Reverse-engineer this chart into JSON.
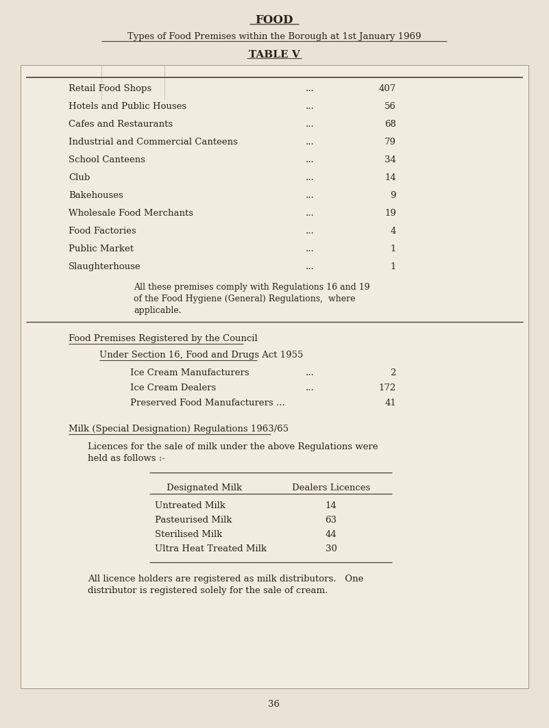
{
  "page_bg": "#e8e3d5",
  "card_bg": "#f0ece0",
  "card_edge": "#a09880",
  "title_main": "FOOD",
  "title_sub": "Types of Food Premises within the Borough at 1st January 1969",
  "table_title": "TABLE V",
  "table1_rows": [
    [
      "Retail Food Shops",
      "...",
      "407"
    ],
    [
      "Hotels and Public Houses",
      "...",
      "56"
    ],
    [
      "Cafes and Restaurants",
      "...",
      "68"
    ],
    [
      "Industrial and Commercial Canteens",
      "...",
      "79"
    ],
    [
      "School Canteens",
      "...",
      "34"
    ],
    [
      "Club",
      "...",
      "14"
    ],
    [
      "Bakehouses",
      "...",
      "9"
    ],
    [
      "Wholesale Food Merchants",
      "...",
      "19"
    ],
    [
      "Food Factories",
      "...",
      "4"
    ],
    [
      "Public Market",
      "...",
      "1"
    ],
    [
      "Slaughterhouse",
      "...",
      "1"
    ]
  ],
  "table1_note_lines": [
    "All these premises comply with Regulations 16 and 19",
    "of the Food Hygiene (General) Regulations,  where",
    "applicable."
  ],
  "section2_title": "Food Premises Registered by the Council",
  "section2_sub": "Under Section 16, Food and Drugs Act 1955",
  "table2_rows": [
    [
      "Ice Cream Manufacturers",
      "...",
      "2"
    ],
    [
      "Ice Cream Dealers",
      "...",
      "172"
    ],
    [
      "Preserved Food Manufacturers ...",
      "",
      "41"
    ]
  ],
  "section3_title": "Milk (Special Designation) Regulations 1963/65",
  "section3_intro_lines": [
    "Licences for the sale of milk under the above Regulations were",
    "held as follows :-"
  ],
  "milk_table_col1": "Designated Milk",
  "milk_table_col2": "Dealers Licences",
  "milk_table_rows": [
    [
      "Untreated Milk",
      "14"
    ],
    [
      "Pasteurised Milk",
      "63"
    ],
    [
      "Sterilised Milk",
      "44"
    ],
    [
      "Ultra Heat Treated Milk",
      "30"
    ]
  ],
  "section3_note_lines": [
    "All licence holders are registered as milk distributors.   One",
    "distributor is registered solely for the sale of cream."
  ],
  "page_number": "36",
  "tc": "#2a2218",
  "lc": "#4a4030"
}
